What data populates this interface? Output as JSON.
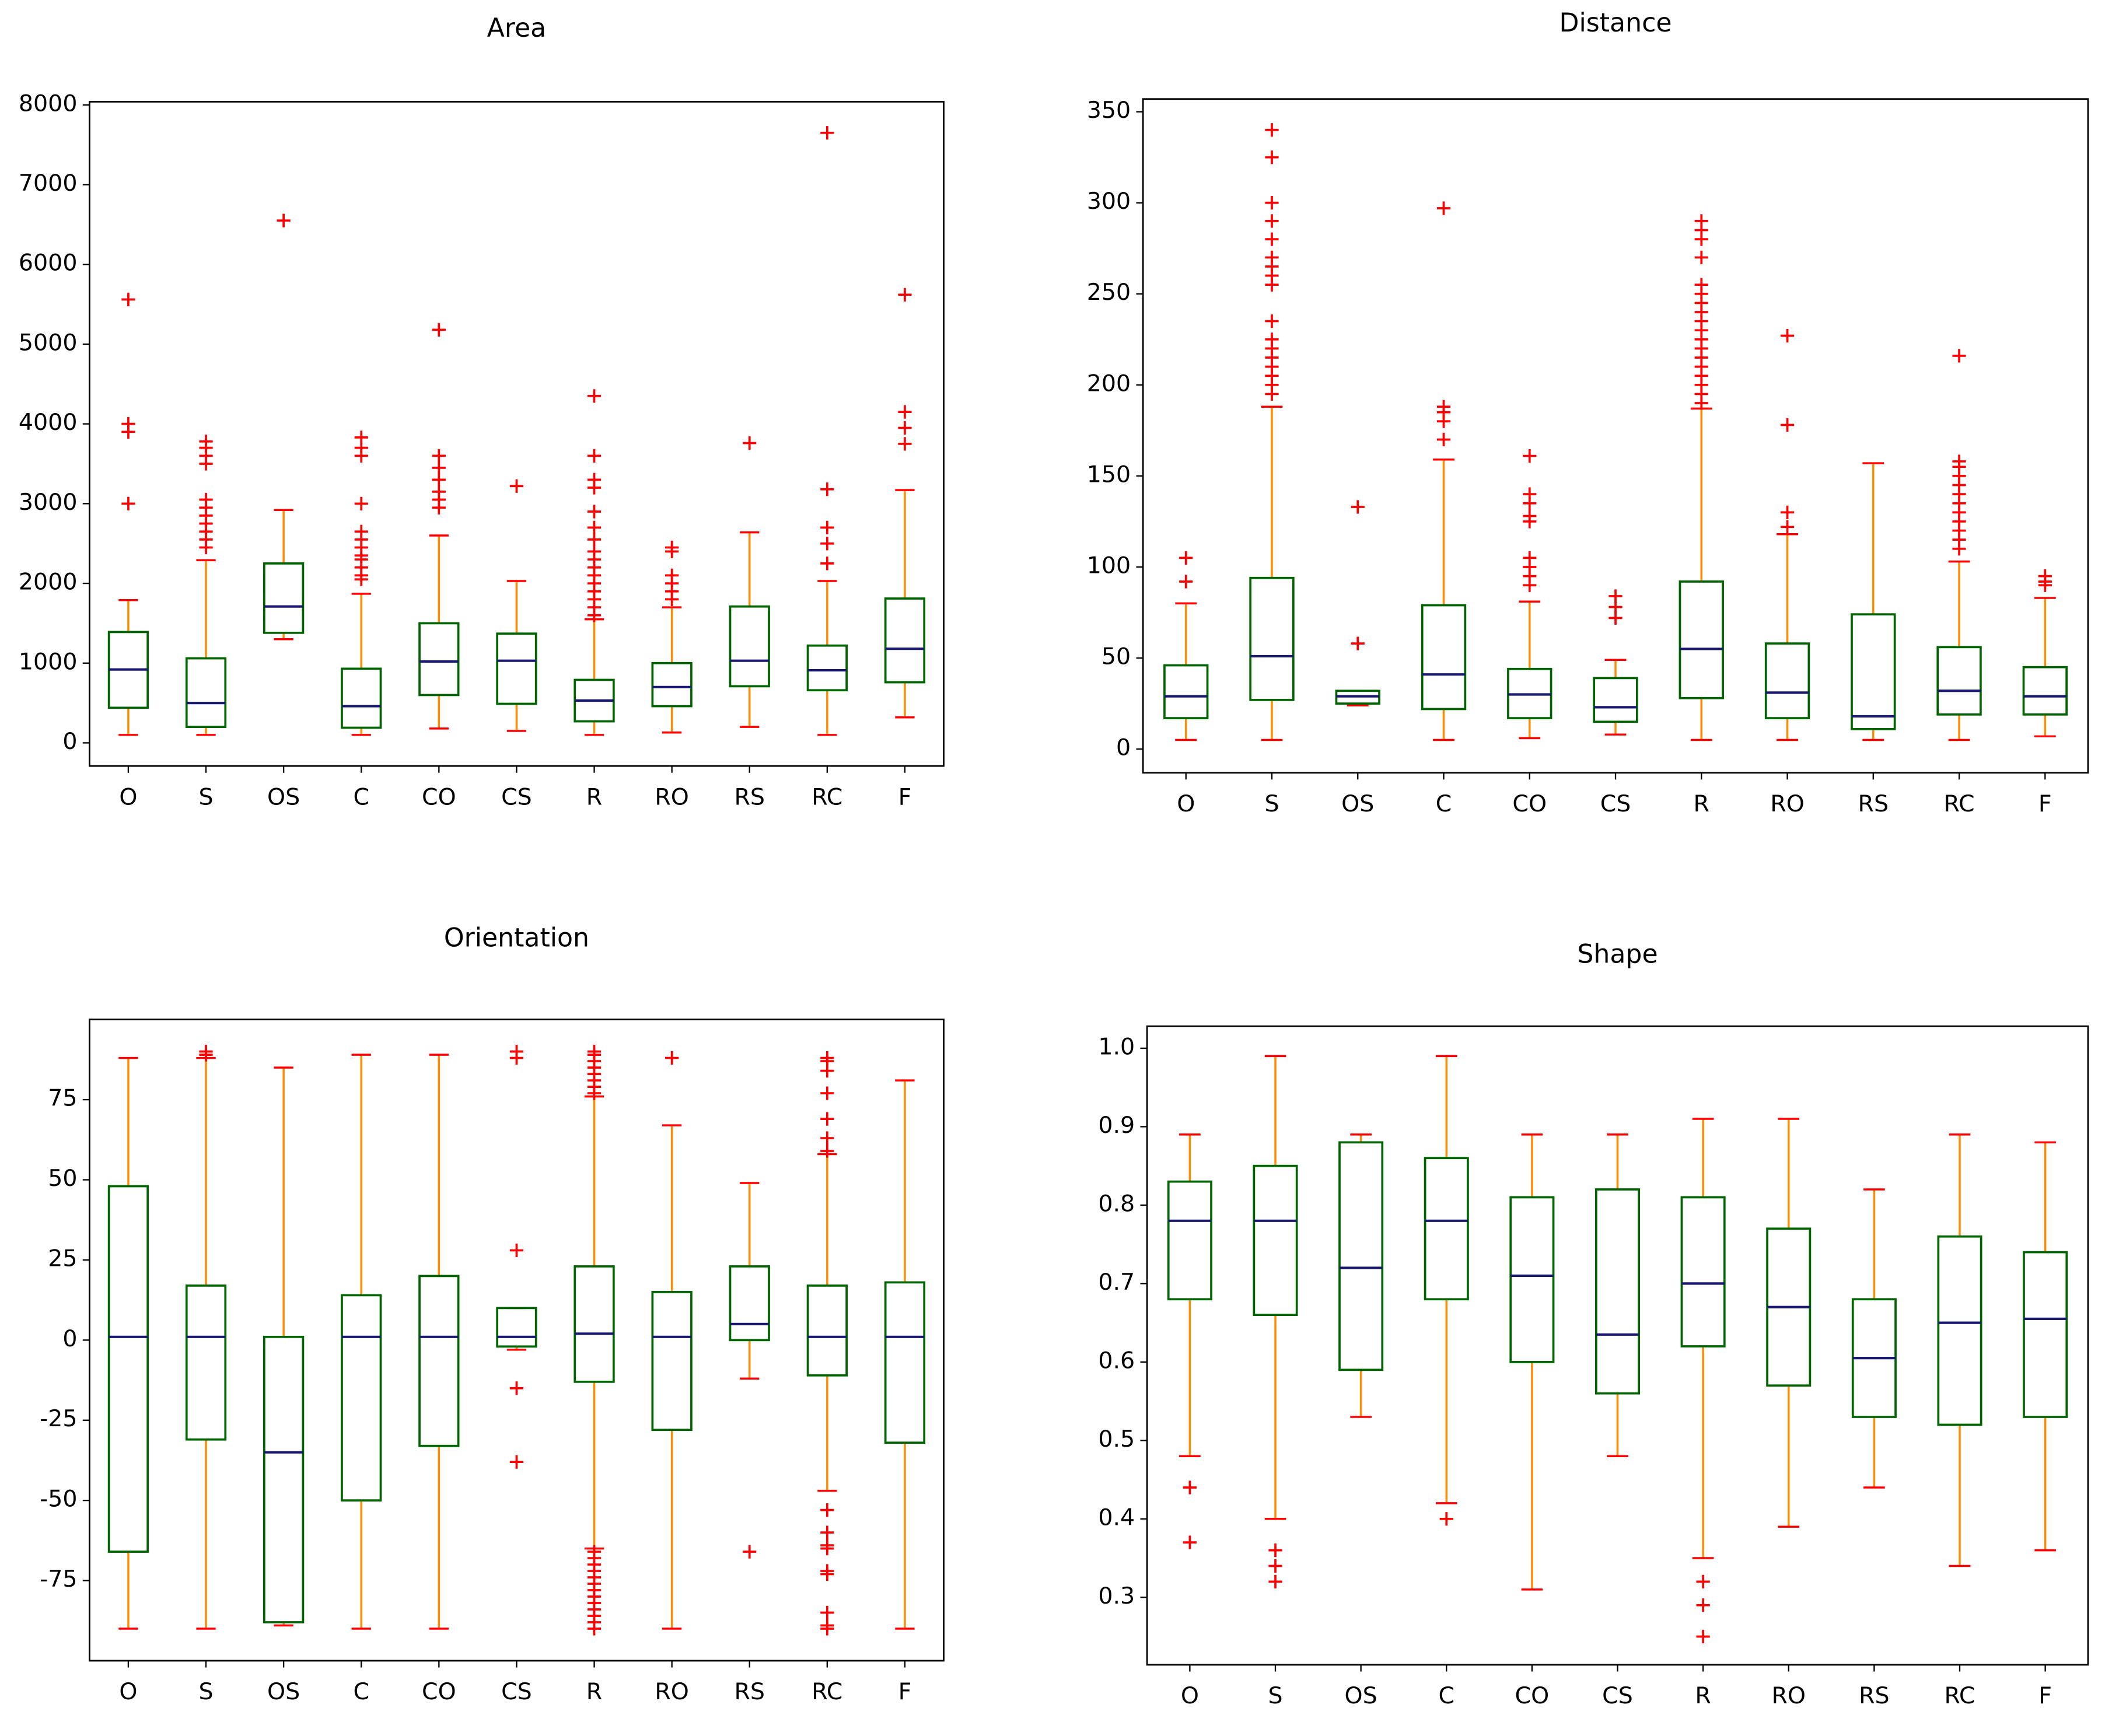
{
  "chart_data": [
    {
      "type": "box",
      "title": "Area",
      "categories": [
        "O",
        "S",
        "OS",
        "C",
        "CO",
        "CS",
        "R",
        "RO",
        "RS",
        "RC",
        "F"
      ],
      "ylim": [
        -290,
        8040
      ],
      "yticks": [
        0,
        1000,
        2000,
        3000,
        4000,
        5000,
        6000,
        7000,
        8000
      ],
      "box_color": "#006400",
      "median_color": "#191970",
      "whisker_color": "#ff8c00",
      "flier_color": "#ff0000",
      "boxes": [
        {
          "whislo": 100,
          "q1": 440,
          "med": 920,
          "q3": 1390,
          "whishi": 1790,
          "fliers": [
            3000,
            3900,
            4000,
            5560
          ]
        },
        {
          "whislo": 100,
          "q1": 200,
          "med": 500,
          "q3": 1060,
          "whishi": 2290,
          "fliers": [
            2450,
            2550,
            2650,
            2750,
            2850,
            2950,
            3050,
            3500,
            3600,
            3700,
            3780
          ]
        },
        {
          "whislo": 1300,
          "q1": 1380,
          "med": 1710,
          "q3": 2250,
          "whishi": 2920,
          "fliers": [
            6550
          ]
        },
        {
          "whislo": 100,
          "q1": 190,
          "med": 460,
          "q3": 930,
          "whishi": 1870,
          "fliers": [
            2050,
            2100,
            2200,
            2300,
            2350,
            2450,
            2550,
            2650,
            3000,
            3600,
            3700,
            3830
          ]
        },
        {
          "whislo": 180,
          "q1": 600,
          "med": 1020,
          "q3": 1500,
          "whishi": 2600,
          "fliers": [
            2950,
            3050,
            3150,
            3300,
            3450,
            3600,
            5180
          ]
        },
        {
          "whislo": 150,
          "q1": 490,
          "med": 1030,
          "q3": 1370,
          "whishi": 2030,
          "fliers": [
            3220
          ]
        },
        {
          "whislo": 100,
          "q1": 270,
          "med": 530,
          "q3": 790,
          "whishi": 1550,
          "fliers": [
            1600,
            1700,
            1800,
            1900,
            2000,
            2100,
            2200,
            2300,
            2400,
            2550,
            2700,
            2900,
            3200,
            3300,
            3600,
            4350
          ]
        },
        {
          "whislo": 130,
          "q1": 460,
          "med": 700,
          "q3": 1000,
          "whishi": 1700,
          "fliers": [
            1800,
            1900,
            2000,
            2100,
            2400,
            2450
          ]
        },
        {
          "whislo": 200,
          "q1": 710,
          "med": 1030,
          "q3": 1710,
          "whishi": 2640,
          "fliers": [
            3760
          ]
        },
        {
          "whislo": 100,
          "q1": 660,
          "med": 910,
          "q3": 1220,
          "whishi": 2030,
          "fliers": [
            2250,
            2500,
            2700,
            3180,
            7650
          ]
        },
        {
          "whislo": 320,
          "q1": 760,
          "med": 1180,
          "q3": 1810,
          "whishi": 3170,
          "fliers": [
            3750,
            3950,
            4150,
            5620
          ]
        }
      ]
    },
    {
      "type": "box",
      "title": "Distance",
      "categories": [
        "O",
        "S",
        "OS",
        "C",
        "CO",
        "CS",
        "R",
        "RO",
        "RS",
        "RC",
        "F"
      ],
      "ylim": [
        -13,
        357
      ],
      "yticks": [
        0,
        50,
        100,
        150,
        200,
        250,
        300,
        350
      ],
      "box_color": "#006400",
      "median_color": "#191970",
      "whisker_color": "#ff8c00",
      "flier_color": "#ff0000",
      "boxes": [
        {
          "whislo": 5,
          "q1": 17,
          "med": 29,
          "q3": 46,
          "whishi": 80,
          "fliers": [
            92,
            105
          ]
        },
        {
          "whislo": 5,
          "q1": 27,
          "med": 51,
          "q3": 94,
          "whishi": 188,
          "fliers": [
            195,
            200,
            205,
            210,
            215,
            220,
            225,
            235,
            255,
            260,
            265,
            270,
            280,
            290,
            300,
            325,
            340
          ]
        },
        {
          "whislo": 24,
          "q1": 25,
          "med": 29,
          "q3": 32,
          "whishi": 32,
          "fliers": [
            58,
            133
          ]
        },
        {
          "whislo": 5,
          "q1": 22,
          "med": 41,
          "q3": 79,
          "whishi": 159,
          "fliers": [
            170,
            180,
            185,
            188,
            297
          ]
        },
        {
          "whislo": 6,
          "q1": 17,
          "med": 30,
          "q3": 44,
          "whishi": 81,
          "fliers": [
            90,
            95,
            100,
            105,
            125,
            128,
            135,
            140,
            161
          ]
        },
        {
          "whislo": 8,
          "q1": 15,
          "med": 23,
          "q3": 39,
          "whishi": 49,
          "fliers": [
            72,
            78,
            84
          ]
        },
        {
          "whislo": 5,
          "q1": 28,
          "med": 55,
          "q3": 92,
          "whishi": 187,
          "fliers": [
            190,
            195,
            200,
            205,
            210,
            215,
            220,
            225,
            230,
            235,
            240,
            245,
            250,
            255,
            270,
            280,
            285,
            290
          ]
        },
        {
          "whislo": 5,
          "q1": 17,
          "med": 31,
          "q3": 58,
          "whishi": 118,
          "fliers": [
            122,
            130,
            178,
            227
          ]
        },
        {
          "whislo": 5,
          "q1": 11,
          "med": 18,
          "q3": 74,
          "whishi": 157,
          "fliers": []
        },
        {
          "whislo": 5,
          "q1": 19,
          "med": 32,
          "q3": 56,
          "whishi": 103,
          "fliers": [
            110,
            115,
            120,
            125,
            130,
            135,
            140,
            145,
            150,
            155,
            158,
            216
          ]
        },
        {
          "whislo": 7,
          "q1": 19,
          "med": 29,
          "q3": 45,
          "whishi": 83,
          "fliers": [
            90,
            92,
            95
          ]
        }
      ]
    },
    {
      "type": "box",
      "title": "Orientation",
      "categories": [
        "O",
        "S",
        "OS",
        "C",
        "CO",
        "CS",
        "R",
        "RO",
        "RS",
        "RC",
        "F"
      ],
      "ylim": [
        -100,
        100
      ],
      "yticks": [
        -75,
        -50,
        -25,
        0,
        25,
        50,
        75
      ],
      "box_color": "#006400",
      "median_color": "#191970",
      "whisker_color": "#ff8c00",
      "flier_color": "#ff0000",
      "boxes": [
        {
          "whislo": -90,
          "q1": -66,
          "med": 1,
          "q3": 48,
          "whishi": 88,
          "fliers": []
        },
        {
          "whislo": -90,
          "q1": -31,
          "med": 1,
          "q3": 17,
          "whishi": 88,
          "fliers": [
            89,
            90
          ]
        },
        {
          "whislo": -89,
          "q1": -88,
          "med": -35,
          "q3": 1,
          "whishi": 85,
          "fliers": []
        },
        {
          "whislo": -90,
          "q1": -50,
          "med": 1,
          "q3": 14,
          "whishi": 89,
          "fliers": []
        },
        {
          "whislo": -90,
          "q1": -33,
          "med": 1,
          "q3": 20,
          "whishi": 89,
          "fliers": []
        },
        {
          "whislo": -3,
          "q1": -2,
          "med": 1,
          "q3": 10,
          "whishi": 10,
          "fliers": [
            -38,
            -15,
            28,
            88,
            90
          ]
        },
        {
          "whislo": -65,
          "q1": -13,
          "med": 2,
          "q3": 23,
          "whishi": 76,
          "fliers": [
            -90,
            -88,
            -86,
            -84,
            -82,
            -80,
            -78,
            -76,
            -74,
            -72,
            -70,
            -68,
            -66,
            77,
            79,
            81,
            83,
            85,
            87,
            89,
            90
          ]
        },
        {
          "whislo": -90,
          "q1": -28,
          "med": 1,
          "q3": 15,
          "whishi": 67,
          "fliers": [
            88
          ]
        },
        {
          "whislo": -12,
          "q1": 0,
          "med": 5,
          "q3": 23,
          "whishi": 49,
          "fliers": [
            -66
          ]
        },
        {
          "whislo": -47,
          "q1": -11,
          "med": 1,
          "q3": 17,
          "whishi": 58,
          "fliers": [
            -90,
            -89,
            -85,
            -73,
            -72,
            -65,
            -64,
            -60,
            -53,
            59,
            63,
            69,
            77,
            84,
            87,
            88
          ]
        },
        {
          "whislo": -90,
          "q1": -32,
          "med": 1,
          "q3": 18,
          "whishi": 81,
          "fliers": []
        }
      ]
    },
    {
      "type": "box",
      "title": "Shape",
      "categories": [
        "O",
        "S",
        "OS",
        "C",
        "CO",
        "CS",
        "R",
        "RO",
        "RS",
        "RC",
        "F"
      ],
      "ylim": [
        0.214,
        1.028
      ],
      "yticks": [
        0.3,
        0.4,
        0.5,
        0.6,
        0.7,
        0.8,
        0.9,
        {
          "value": 1,
          "label": "1.0"
        }
      ],
      "box_color": "#006400",
      "median_color": "#191970",
      "whisker_color": "#ff8c00",
      "flier_color": "#ff0000",
      "boxes": [
        {
          "whislo": 0.48,
          "q1": 0.68,
          "med": 0.78,
          "q3": 0.83,
          "whishi": 0.89,
          "fliers": [
            0.37,
            0.44
          ]
        },
        {
          "whislo": 0.4,
          "q1": 0.66,
          "med": 0.78,
          "q3": 0.85,
          "whishi": 0.99,
          "fliers": [
            0.32,
            0.34,
            0.36
          ]
        },
        {
          "whislo": 0.53,
          "q1": 0.59,
          "med": 0.72,
          "q3": 0.88,
          "whishi": 0.89,
          "fliers": []
        },
        {
          "whislo": 0.42,
          "q1": 0.68,
          "med": 0.78,
          "q3": 0.86,
          "whishi": 0.99,
          "fliers": [
            0.4
          ]
        },
        {
          "whislo": 0.31,
          "q1": 0.6,
          "med": 0.71,
          "q3": 0.81,
          "whishi": 0.89,
          "fliers": []
        },
        {
          "whislo": 0.48,
          "q1": 0.56,
          "med": 0.635,
          "q3": 0.82,
          "whishi": 0.89,
          "fliers": []
        },
        {
          "whislo": 0.35,
          "q1": 0.62,
          "med": 0.7,
          "q3": 0.81,
          "whishi": 0.91,
          "fliers": [
            0.25,
            0.29,
            0.32
          ]
        },
        {
          "whislo": 0.39,
          "q1": 0.57,
          "med": 0.67,
          "q3": 0.77,
          "whishi": 0.91,
          "fliers": []
        },
        {
          "whislo": 0.44,
          "q1": 0.53,
          "med": 0.605,
          "q3": 0.68,
          "whishi": 0.82,
          "fliers": []
        },
        {
          "whislo": 0.34,
          "q1": 0.52,
          "med": 0.65,
          "q3": 0.76,
          "whishi": 0.89,
          "fliers": []
        },
        {
          "whislo": 0.36,
          "q1": 0.53,
          "med": 0.655,
          "q3": 0.74,
          "whishi": 0.88,
          "fliers": []
        }
      ]
    }
  ]
}
